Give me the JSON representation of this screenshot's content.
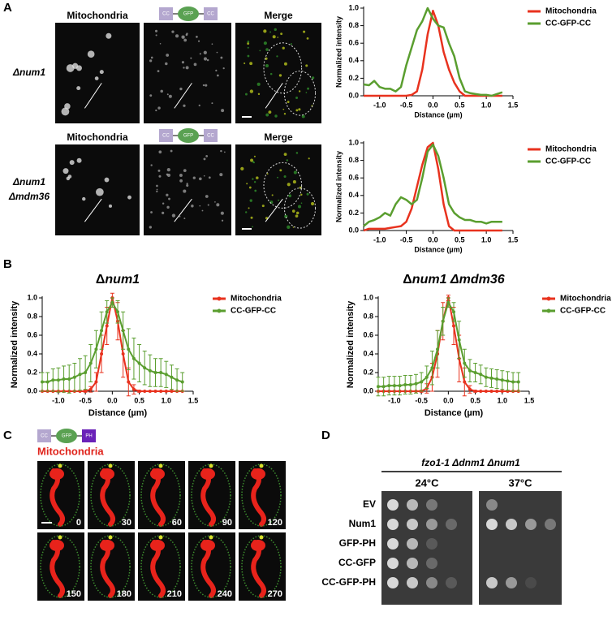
{
  "panel_a": {
    "label": "A",
    "rows": [
      {
        "strain": [
          "Δnum1"
        ],
        "mito": "Mitochondria",
        "construct": [
          "CC",
          "GFP",
          "CC"
        ],
        "merge": "Merge"
      },
      {
        "strain": [
          "Δnum1",
          "Δmdm36"
        ],
        "mito": "Mitochondria",
        "construct": [
          "CC",
          "GFP",
          "CC"
        ],
        "merge": "Merge"
      }
    ]
  },
  "panel_b": {
    "label": "B"
  },
  "panel_c": {
    "label": "C",
    "construct": [
      "CC",
      "GFP",
      "PH"
    ],
    "channel": "Mitochondria",
    "times": [
      0,
      30,
      60,
      90,
      120,
      150,
      180,
      210,
      240,
      270
    ]
  },
  "panel_d": {
    "label": "D",
    "strain": "fzo1-1 Δdnm1 Δnum1",
    "temps": [
      "24°C",
      "37°C"
    ],
    "rows": [
      "EV",
      "Num1",
      "GFP-PH",
      "CC-GFP",
      "CC-GFP-PH"
    ]
  },
  "chart_data": [
    {
      "type": "line",
      "x_label": "Distance (µm)",
      "y_label": "Normalized intensity",
      "legend": "right",
      "x": [
        -1.3,
        -1.2,
        -1.1,
        -1.0,
        -0.9,
        -0.8,
        -0.7,
        -0.6,
        -0.5,
        -0.4,
        -0.3,
        -0.2,
        -0.1,
        0,
        0.1,
        0.2,
        0.3,
        0.4,
        0.5,
        0.6,
        0.7,
        0.8,
        0.9,
        1.0,
        1.1,
        1.2,
        1.3
      ],
      "series": [
        {
          "name": "Mitochondria",
          "color": "#e8321e",
          "values": [
            0,
            0,
            0,
            0,
            0,
            0,
            0,
            0,
            0,
            0.01,
            0.05,
            0.3,
            0.7,
            0.97,
            0.8,
            0.5,
            0.3,
            0.15,
            0.05,
            0,
            0,
            0,
            0,
            0,
            0,
            0,
            0
          ]
        },
        {
          "name": "CC-GFP-CC",
          "color": "#5a9e2f",
          "values": [
            0.13,
            0.12,
            0.17,
            0.1,
            0.08,
            0.08,
            0.05,
            0.1,
            0.35,
            0.55,
            0.75,
            0.85,
            1.0,
            0.88,
            0.8,
            0.78,
            0.6,
            0.45,
            0.2,
            0.05,
            0.03,
            0.02,
            0.01,
            0.01,
            0,
            0.02,
            0.04
          ]
        }
      ],
      "xlim": [
        -1.3,
        1.5
      ],
      "ylim": [
        0,
        1
      ],
      "xticks": [
        {
          "value": -1,
          "label": "-1.0"
        },
        -0.5,
        {
          "value": 0,
          "label": "0.0"
        },
        0.5,
        {
          "value": 1,
          "label": "1.0"
        },
        1.5
      ],
      "yticks": [
        {
          "value": 0,
          "label": "0.0"
        },
        0.2,
        0.4,
        0.6,
        0.8,
        {
          "value": 1,
          "label": "1.0"
        }
      ]
    },
    {
      "type": "line",
      "x_label": "Distance (µm)",
      "y_label": "Normalized intensity",
      "legend": "right",
      "x": [
        -1.3,
        -1.2,
        -1.1,
        -1.0,
        -0.9,
        -0.8,
        -0.7,
        -0.6,
        -0.5,
        -0.4,
        -0.3,
        -0.2,
        -0.1,
        0,
        0.1,
        0.2,
        0.3,
        0.4,
        0.5,
        0.6,
        0.7,
        0.8,
        0.9,
        1.0,
        1.1,
        1.2,
        1.3
      ],
      "series": [
        {
          "name": "Mitochondria",
          "color": "#e8321e",
          "values": [
            0,
            0.02,
            0.02,
            0.02,
            0.02,
            0.03,
            0.04,
            0.05,
            0.1,
            0.25,
            0.5,
            0.75,
            0.95,
            1.0,
            0.7,
            0.3,
            0.05,
            0,
            0,
            0,
            0,
            0,
            0,
            0,
            0,
            0,
            0
          ]
        },
        {
          "name": "CC-GFP-CC",
          "color": "#5a9e2f",
          "values": [
            0.05,
            0.1,
            0.12,
            0.15,
            0.2,
            0.17,
            0.3,
            0.38,
            0.35,
            0.3,
            0.35,
            0.6,
            0.9,
            0.98,
            0.85,
            0.6,
            0.3,
            0.2,
            0.15,
            0.12,
            0.12,
            0.1,
            0.1,
            0.08,
            0.1,
            0.1,
            0.1
          ]
        }
      ],
      "xlim": [
        -1.3,
        1.5
      ],
      "ylim": [
        0,
        1
      ],
      "xticks": [
        {
          "value": -1,
          "label": "-1.0"
        },
        -0.5,
        {
          "value": 0,
          "label": "0.0"
        },
        0.5,
        {
          "value": 1,
          "label": "1.0"
        },
        1.5
      ],
      "yticks": [
        {
          "value": 0,
          "label": "0.0"
        },
        0.2,
        0.4,
        0.6,
        0.8,
        {
          "value": 1,
          "label": "1.0"
        }
      ]
    },
    {
      "type": "line",
      "title": [
        "Δ",
        "num1"
      ],
      "x_label": "Distance (µm)",
      "y_label": "Normalized intensity",
      "legend": "right",
      "markers": true,
      "x": [
        -1.3,
        -1.2,
        -1.1,
        -1.0,
        -0.9,
        -0.8,
        -0.7,
        -0.6,
        -0.5,
        -0.4,
        -0.3,
        -0.2,
        -0.1,
        0,
        0.1,
        0.2,
        0.3,
        0.4,
        0.5,
        0.6,
        0.7,
        0.8,
        0.9,
        1.0,
        1.1,
        1.2,
        1.3
      ],
      "series": [
        {
          "name": "Mitochondria",
          "color": "#e8321e",
          "values": [
            0,
            0,
            0,
            0,
            0,
            0,
            0,
            0,
            0,
            0.02,
            0.1,
            0.4,
            0.7,
            1.0,
            0.75,
            0.4,
            0.1,
            0.02,
            0,
            0,
            0,
            0,
            0,
            0,
            0,
            0,
            0
          ],
          "errors": [
            0,
            0,
            0,
            0,
            0,
            0,
            0,
            0,
            0.01,
            0.03,
            0.1,
            0.2,
            0.2,
            0.05,
            0.2,
            0.25,
            0.15,
            0.05,
            0.01,
            0,
            0,
            0,
            0,
            0,
            0,
            0,
            0
          ]
        },
        {
          "name": "CC-GFP-CC",
          "color": "#5a9e2f",
          "values": [
            0.1,
            0.1,
            0.12,
            0.12,
            0.13,
            0.13,
            0.15,
            0.18,
            0.2,
            0.3,
            0.45,
            0.65,
            0.85,
            0.95,
            0.85,
            0.65,
            0.45,
            0.35,
            0.3,
            0.25,
            0.22,
            0.2,
            0.2,
            0.18,
            0.15,
            0.12,
            0.1
          ],
          "errors": [
            0.1,
            0.1,
            0.12,
            0.13,
            0.14,
            0.15,
            0.15,
            0.17,
            0.18,
            0.2,
            0.2,
            0.2,
            0.12,
            0.05,
            0.12,
            0.2,
            0.22,
            0.22,
            0.2,
            0.18,
            0.17,
            0.15,
            0.15,
            0.14,
            0.13,
            0.12,
            0.1
          ]
        }
      ],
      "xlim": [
        -1.3,
        1.5
      ],
      "ylim": [
        0,
        1
      ],
      "xticks": [
        {
          "value": -1,
          "label": "-1.0"
        },
        -0.5,
        {
          "value": 0,
          "label": "0.0"
        },
        0.5,
        {
          "value": 1,
          "label": "1.0"
        },
        1.5
      ],
      "yticks": [
        {
          "value": 0,
          "label": "0.0"
        },
        0.2,
        0.4,
        0.6,
        0.8,
        {
          "value": 1,
          "label": "1.0"
        }
      ]
    },
    {
      "type": "line",
      "title": [
        "Δ",
        "num1 Δmdm36"
      ],
      "x_label": "Distance (µm)",
      "y_label": "Normalized intensity",
      "legend": "right",
      "markers": true,
      "x": [
        -1.3,
        -1.2,
        -1.1,
        -1.0,
        -0.9,
        -0.8,
        -0.7,
        -0.6,
        -0.5,
        -0.4,
        -0.3,
        -0.2,
        -0.1,
        0,
        0.1,
        0.2,
        0.3,
        0.4,
        0.5,
        0.6,
        0.7,
        0.8,
        0.9,
        1.0,
        1.1,
        1.2,
        1.3
      ],
      "series": [
        {
          "name": "Mitochondria",
          "color": "#e8321e",
          "values": [
            0,
            0,
            0,
            0,
            0,
            0,
            0,
            0,
            0,
            0.03,
            0.15,
            0.4,
            0.75,
            1.0,
            0.7,
            0.35,
            0.1,
            0.02,
            0,
            0,
            0,
            0,
            0,
            0,
            0,
            0,
            0
          ],
          "errors": [
            0,
            0,
            0,
            0,
            0,
            0,
            0,
            0,
            0.01,
            0.05,
            0.15,
            0.25,
            0.2,
            0.03,
            0.2,
            0.25,
            0.15,
            0.04,
            0.01,
            0,
            0,
            0,
            0,
            0,
            0,
            0,
            0
          ]
        },
        {
          "name": "CC-GFP-CC",
          "color": "#5a9e2f",
          "values": [
            0.05,
            0.05,
            0.06,
            0.06,
            0.06,
            0.07,
            0.07,
            0.08,
            0.1,
            0.15,
            0.25,
            0.45,
            0.75,
            0.95,
            0.85,
            0.55,
            0.3,
            0.22,
            0.2,
            0.18,
            0.15,
            0.14,
            0.13,
            0.12,
            0.11,
            0.1,
            0.1
          ],
          "errors": [
            0.1,
            0.1,
            0.1,
            0.1,
            0.1,
            0.1,
            0.1,
            0.1,
            0.1,
            0.12,
            0.18,
            0.2,
            0.15,
            0.05,
            0.1,
            0.2,
            0.15,
            0.12,
            0.1,
            0.1,
            0.1,
            0.1,
            0.1,
            0.1,
            0.1,
            0.1,
            0.1
          ]
        }
      ],
      "xlim": [
        -1.3,
        1.5
      ],
      "ylim": [
        0,
        1
      ],
      "xticks": [
        {
          "value": -1,
          "label": "-1.0"
        },
        -0.5,
        {
          "value": 0,
          "label": "0.0"
        },
        0.5,
        {
          "value": 1,
          "label": "1.0"
        },
        1.5
      ],
      "yticks": [
        {
          "value": 0,
          "label": "0.0"
        },
        0.2,
        0.4,
        0.6,
        0.8,
        {
          "value": 1,
          "label": "1.0"
        }
      ]
    }
  ]
}
